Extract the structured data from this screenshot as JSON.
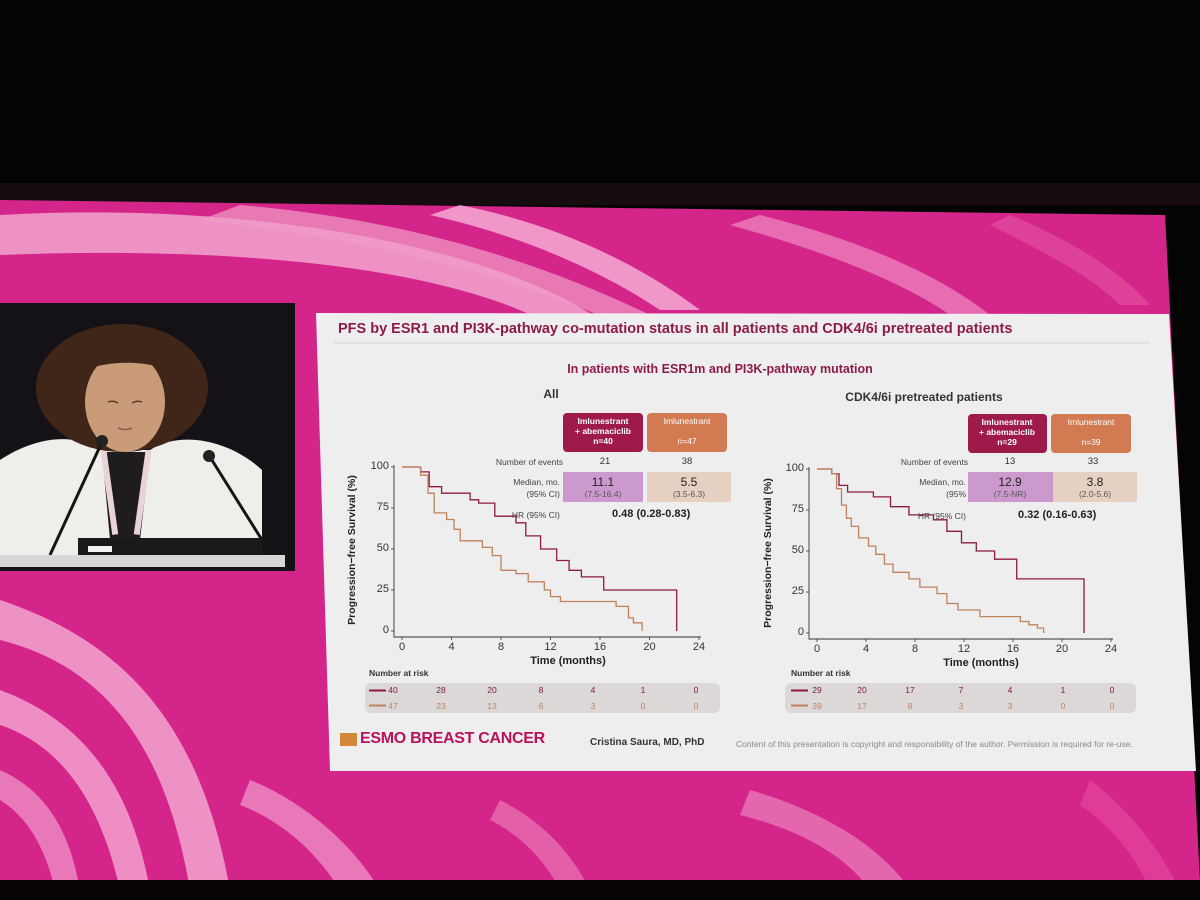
{
  "slide": {
    "title": "PFS by ESR1 and PI3K-pathway co-mutation status in all patients and CDK4/6i pretreated patients",
    "subtitle": "In patients with ESR1m and PI3K-pathway mutation",
    "presenter": "Cristina Saura, MD, PhD",
    "logo_text": "ESMO BREAST CANCER",
    "copyright": "Content of this presentation is copyright and responsibility of the author. Permission is required for re-use."
  },
  "colors": {
    "combo": "#8c1a42",
    "mono": "#c0825c",
    "combo_header": "#9e1a4a",
    "mono_header": "#d27a52",
    "combo_median_bg": "#cc99cf",
    "mono_median_bg": "#e6d0c2",
    "backdrop": "#d4258a"
  },
  "panels": [
    {
      "name": "All",
      "labels": {
        "events": "Number of events",
        "median": "Median, mo.",
        "ci": "(95% CI)",
        "hr": "HR (95% CI)"
      },
      "arms": [
        {
          "line1": "Imlunestrant",
          "line2": "+ abemaciclib",
          "n": "n=40",
          "events": "21",
          "median": "11.1",
          "median_ci": "(7.5-16.4)"
        },
        {
          "line1": "Imlunestrant",
          "line2": "",
          "n": "n=47",
          "events": "38",
          "median": "5.5",
          "median_ci": "(3.5-6.3)"
        }
      ],
      "hr": "0.48 (0.28-0.83)",
      "risk_label": "Number at risk",
      "risk": [
        [
          "40",
          "28",
          "20",
          "8",
          "4",
          "1",
          "0"
        ],
        [
          "47",
          "23",
          "13",
          "6",
          "3",
          "0",
          "0"
        ]
      ]
    },
    {
      "name": "CDK4/6i pretreated patients",
      "labels": {
        "events": "Number of events",
        "median": "Median, mo.",
        "ci": "(95%",
        "hr": "HR (95% CI)"
      },
      "arms": [
        {
          "line1": "Imlunestrant",
          "line2": "+ abemaciclib",
          "n": "n=29",
          "events": "13",
          "median": "12.9",
          "median_ci": "(7.5-NR)"
        },
        {
          "line1": "Imlunestrant",
          "line2": "",
          "n": "n=39",
          "events": "33",
          "median": "3.8",
          "median_ci": "(2.0-5.6)"
        }
      ],
      "hr": "0.32 (0.16-0.63)",
      "risk_label": "Number at risk",
      "risk": [
        [
          "29",
          "20",
          "17",
          "7",
          "4",
          "1",
          "0"
        ],
        [
          "39",
          "17",
          "8",
          "3",
          "3",
          "0",
          "0"
        ]
      ]
    }
  ],
  "chart_data": [
    {
      "type": "line",
      "title": "All",
      "xlabel": "Time (months)",
      "ylabel": "Progression−free Survival (%)",
      "xlim": [
        0,
        24
      ],
      "ylim": [
        0,
        100
      ],
      "xticks": [
        "0",
        "4",
        "8",
        "12",
        "16",
        "20",
        "24"
      ],
      "yticks": [
        "0",
        "25",
        "50",
        "75",
        "100"
      ],
      "series": [
        {
          "name": "Imlunestrant + abemaciclib",
          "color_key": "combo",
          "points": [
            [
              0,
              100
            ],
            [
              1.5,
              100
            ],
            [
              1.5,
              97
            ],
            [
              2.2,
              97
            ],
            [
              2.2,
              88
            ],
            [
              3.2,
              88
            ],
            [
              3.2,
              84
            ],
            [
              5.5,
              84
            ],
            [
              5.5,
              80
            ],
            [
              6.2,
              80
            ],
            [
              6.2,
              78
            ],
            [
              7.5,
              78
            ],
            [
              7.5,
              70
            ],
            [
              9.2,
              70
            ],
            [
              9.2,
              66
            ],
            [
              10,
              66
            ],
            [
              10,
              58
            ],
            [
              11.2,
              58
            ],
            [
              11.2,
              50
            ],
            [
              12.5,
              50
            ],
            [
              12.5,
              43
            ],
            [
              13.5,
              43
            ],
            [
              13.5,
              37
            ],
            [
              14.5,
              37
            ],
            [
              14.5,
              33
            ],
            [
              16.3,
              33
            ],
            [
              16.3,
              25
            ],
            [
              22.2,
              25
            ],
            [
              22.2,
              0
            ]
          ]
        },
        {
          "name": "Imlunestrant",
          "color_key": "mono",
          "points": [
            [
              0,
              100
            ],
            [
              1.5,
              100
            ],
            [
              1.5,
              95
            ],
            [
              2.1,
              95
            ],
            [
              2.1,
              84
            ],
            [
              2.6,
              84
            ],
            [
              2.6,
              72
            ],
            [
              3.6,
              72
            ],
            [
              3.6,
              68
            ],
            [
              4.2,
              68
            ],
            [
              4.2,
              62
            ],
            [
              4.7,
              62
            ],
            [
              4.7,
              55
            ],
            [
              6.5,
              55
            ],
            [
              6.5,
              51
            ],
            [
              7.3,
              51
            ],
            [
              7.3,
              46
            ],
            [
              8,
              46
            ],
            [
              8,
              37
            ],
            [
              9.2,
              37
            ],
            [
              9.2,
              35
            ],
            [
              10.2,
              35
            ],
            [
              10.2,
              30
            ],
            [
              11.5,
              30
            ],
            [
              11.5,
              25
            ],
            [
              12,
              25
            ],
            [
              12,
              21
            ],
            [
              12.8,
              21
            ],
            [
              12.8,
              18
            ],
            [
              17.3,
              18
            ],
            [
              17.3,
              15
            ],
            [
              18.3,
              15
            ],
            [
              18.3,
              8
            ],
            [
              18.7,
              8
            ],
            [
              18.7,
              5
            ],
            [
              19.4,
              5
            ],
            [
              19.4,
              0
            ]
          ]
        }
      ]
    },
    {
      "type": "line",
      "title": "CDK4/6i pretreated patients",
      "xlabel": "Time (months)",
      "ylabel": "Progression−free Survival (%)",
      "xlim": [
        0,
        24
      ],
      "ylim": [
        0,
        100
      ],
      "xticks": [
        "0",
        "4",
        "8",
        "12",
        "16",
        "20",
        "24"
      ],
      "yticks": [
        "0",
        "25",
        "50",
        "75",
        "100"
      ],
      "series": [
        {
          "name": "Imlunestrant + abemaciclib",
          "color_key": "combo",
          "points": [
            [
              0,
              100
            ],
            [
              1.2,
              100
            ],
            [
              1.2,
              97
            ],
            [
              1.8,
              97
            ],
            [
              1.8,
              90
            ],
            [
              2.5,
              90
            ],
            [
              2.5,
              86
            ],
            [
              4.6,
              86
            ],
            [
              4.6,
              83
            ],
            [
              6,
              83
            ],
            [
              6,
              77
            ],
            [
              7.5,
              77
            ],
            [
              7.5,
              72
            ],
            [
              9.5,
              72
            ],
            [
              9.5,
              69
            ],
            [
              10.6,
              69
            ],
            [
              10.6,
              62
            ],
            [
              11.8,
              62
            ],
            [
              11.8,
              55
            ],
            [
              13,
              55
            ],
            [
              13,
              50
            ],
            [
              14.5,
              50
            ],
            [
              14.5,
              45
            ],
            [
              16.3,
              45
            ],
            [
              16.3,
              33
            ],
            [
              21.8,
              33
            ],
            [
              21.8,
              0
            ]
          ]
        },
        {
          "name": "Imlunestrant",
          "color_key": "mono",
          "points": [
            [
              0,
              100
            ],
            [
              1.2,
              100
            ],
            [
              1.2,
              97
            ],
            [
              1.6,
              97
            ],
            [
              1.6,
              88
            ],
            [
              2,
              88
            ],
            [
              2,
              78
            ],
            [
              2.4,
              78
            ],
            [
              2.4,
              70
            ],
            [
              2.8,
              70
            ],
            [
              2.8,
              65
            ],
            [
              3.4,
              65
            ],
            [
              3.4,
              58
            ],
            [
              4.2,
              58
            ],
            [
              4.2,
              53
            ],
            [
              4.8,
              53
            ],
            [
              4.8,
              48
            ],
            [
              5.5,
              48
            ],
            [
              5.5,
              42
            ],
            [
              6.2,
              42
            ],
            [
              6.2,
              37
            ],
            [
              7.5,
              37
            ],
            [
              7.5,
              33
            ],
            [
              8.4,
              33
            ],
            [
              8.4,
              28
            ],
            [
              9.8,
              28
            ],
            [
              9.8,
              24
            ],
            [
              10.6,
              24
            ],
            [
              10.6,
              18
            ],
            [
              11.5,
              18
            ],
            [
              11.5,
              14
            ],
            [
              13.3,
              14
            ],
            [
              13.3,
              10
            ],
            [
              16.6,
              10
            ],
            [
              16.6,
              7
            ],
            [
              17.3,
              7
            ],
            [
              17.3,
              5
            ],
            [
              18,
              5
            ],
            [
              18,
              3
            ],
            [
              18.5,
              3
            ],
            [
              18.5,
              0
            ]
          ]
        }
      ]
    }
  ]
}
